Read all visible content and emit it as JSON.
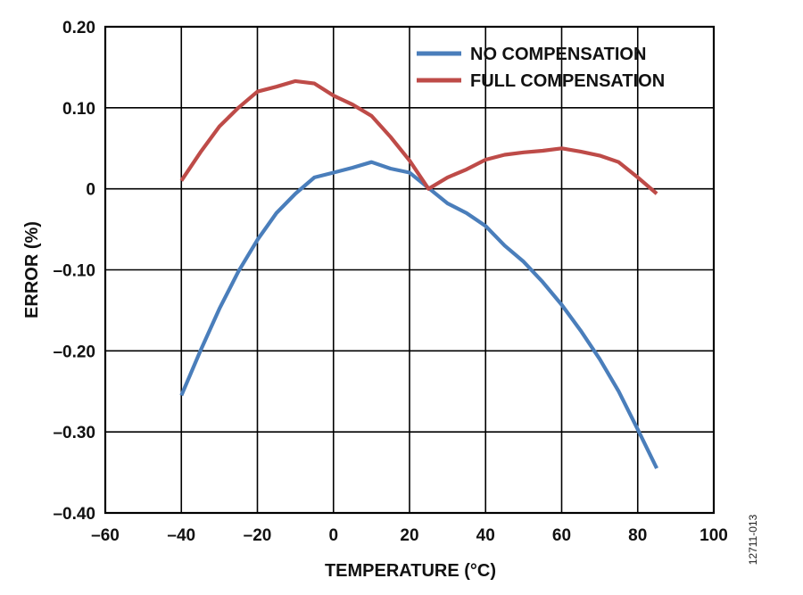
{
  "chart_data": {
    "type": "line",
    "xlabel": "TEMPERATURE (°C)",
    "ylabel": "ERROR (%)",
    "xlim": [
      -60,
      100
    ],
    "ylim": [
      -0.4,
      0.2
    ],
    "x_ticks": [
      -60,
      -40,
      -20,
      0,
      20,
      40,
      60,
      80,
      100
    ],
    "x_tick_labels": [
      "–60",
      "–40",
      "–20",
      "0",
      "20",
      "40",
      "60",
      "80",
      "100"
    ],
    "y_ticks": [
      0.2,
      0.1,
      0,
      -0.1,
      -0.2,
      -0.3,
      -0.4
    ],
    "y_tick_labels": [
      "0.20",
      "0.10",
      "0",
      "–0.10",
      "–0.20",
      "–0.30",
      "–0.40"
    ],
    "grid": true,
    "legend_position": "top-right",
    "series": [
      {
        "name": "NO COMPENSATION",
        "color": "#4a7ebb",
        "x": [
          -40,
          -35,
          -30,
          -25,
          -20,
          -15,
          -10,
          -5,
          0,
          5,
          10,
          15,
          20,
          25,
          30,
          35,
          40,
          45,
          50,
          55,
          60,
          65,
          70,
          75,
          80,
          85
        ],
        "y": [
          -0.255,
          -0.2,
          -0.148,
          -0.102,
          -0.063,
          -0.03,
          -0.006,
          0.014,
          0.02,
          0.026,
          0.033,
          0.025,
          0.02,
          0.001,
          -0.018,
          -0.03,
          -0.046,
          -0.07,
          -0.09,
          -0.115,
          -0.143,
          -0.175,
          -0.21,
          -0.25,
          -0.297,
          -0.345
        ]
      },
      {
        "name": "FULL COMPENSATION",
        "color": "#be4b48",
        "x": [
          -40,
          -35,
          -30,
          -25,
          -20,
          -15,
          -10,
          -5,
          0,
          5,
          10,
          15,
          20,
          25,
          30,
          35,
          40,
          45,
          50,
          55,
          60,
          65,
          70,
          75,
          80,
          85
        ],
        "y": [
          0.01,
          0.045,
          0.077,
          0.1,
          0.12,
          0.126,
          0.133,
          0.13,
          0.115,
          0.104,
          0.09,
          0.064,
          0.035,
          0.0,
          0.014,
          0.024,
          0.036,
          0.042,
          0.045,
          0.047,
          0.05,
          0.046,
          0.041,
          0.033,
          0.014,
          -0.006
        ]
      }
    ]
  },
  "figure_id": "12711-013"
}
